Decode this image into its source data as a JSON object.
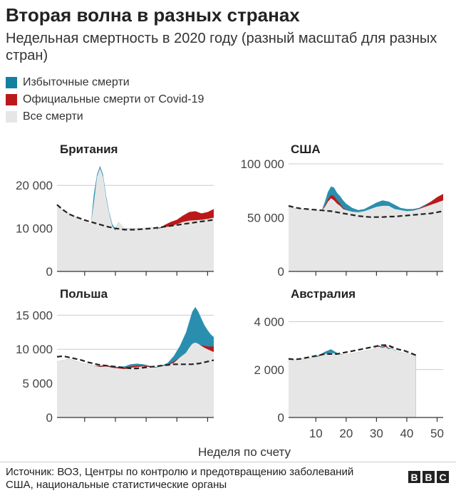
{
  "title": "Вторая волна в разных странах",
  "subtitle": "Недельная смертность в 2020 году (разный масштаб для разных стран)",
  "legend": [
    {
      "label": "Избыточные смерти",
      "color": "#1380a1"
    },
    {
      "label": "Официальные смерти от Covid-19",
      "color": "#bb1919"
    },
    {
      "label": "Все смерти",
      "color": "#e6e6e6"
    }
  ],
  "colors": {
    "excess": "#2a8fae",
    "covid": "#bb1919",
    "all": "#e6e6e6",
    "expected": "#222222",
    "grid": "#cccccc"
  },
  "xlabel": "Неделя по счету",
  "source": "Источник: ВОЗ, Центры по контролю и предотвращению заболеваний США, национальные статистические органы",
  "logo": [
    "B",
    "B",
    "C"
  ],
  "chart_data": [
    {
      "type": "area",
      "title": "Британия",
      "xlim": [
        1,
        52
      ],
      "ylim": [
        0,
        25000
      ],
      "yticks": [
        0,
        10000,
        20000
      ],
      "ytick_labels": [
        "0",
        "10 000",
        "20 000"
      ],
      "xticks": [
        10,
        20,
        30,
        40,
        50
      ],
      "xtick_labels": [],
      "x": [
        1,
        3,
        5,
        7,
        9,
        11,
        12,
        13,
        14,
        15,
        16,
        17,
        18,
        19,
        20,
        21,
        22,
        23,
        24,
        26,
        28,
        30,
        32,
        33,
        34,
        35,
        36,
        38,
        40,
        42,
        44,
        46,
        48,
        50,
        52
      ],
      "all": [
        15000,
        14200,
        13500,
        12700,
        12100,
        11200,
        11000,
        16000,
        22000,
        24000,
        22000,
        17000,
        13500,
        10500,
        9500,
        11500,
        10800,
        10000,
        9800,
        9700,
        10000,
        10200,
        10300,
        9500,
        10000,
        10100,
        10300,
        10500,
        11000,
        11500,
        11800,
        11900,
        12000,
        12200,
        12500
      ],
      "excess": [
        15000,
        14200,
        13500,
        12700,
        12100,
        11200,
        11000,
        18000,
        22500,
        24500,
        22500,
        17500,
        13800,
        11000,
        9800,
        11500,
        10800,
        10000,
        9800,
        9700,
        10000,
        10200,
        10300,
        9500,
        10200,
        10300,
        10600,
        11000,
        11500,
        12200,
        12800,
        13000,
        13200,
        13500,
        13800
      ],
      "covid": [
        15000,
        14200,
        13500,
        12700,
        12100,
        11200,
        11000,
        15000,
        19000,
        21000,
        18000,
        14000,
        12500,
        10000,
        9300,
        11300,
        10600,
        9800,
        9600,
        9500,
        9800,
        10000,
        10100,
        9300,
        10000,
        10300,
        10800,
        11500,
        12000,
        13000,
        13800,
        14000,
        13500,
        13800,
        14500
      ],
      "expected": [
        15500,
        14300,
        13300,
        12700,
        12200,
        11700,
        11500,
        11300,
        11100,
        10900,
        10700,
        10500,
        10300,
        10200,
        10000,
        9900,
        9800,
        9700,
        9700,
        9700,
        9800,
        9900,
        10000,
        10100,
        10200,
        10300,
        10400,
        10600,
        10800,
        11000,
        11200,
        11400,
        11600,
        11800,
        12000
      ]
    },
    {
      "type": "area",
      "title": "США",
      "xlim": [
        1,
        52
      ],
      "ylim": [
        0,
        100000
      ],
      "yticks": [
        0,
        50000,
        100000
      ],
      "ytick_labels": [
        "0",
        "50 000",
        "100 000"
      ],
      "xticks": [
        10,
        20,
        30,
        40,
        50
      ],
      "xtick_labels": [],
      "x": [
        1,
        3,
        5,
        7,
        9,
        11,
        12,
        13,
        14,
        15,
        16,
        17,
        18,
        19,
        20,
        22,
        24,
        26,
        28,
        30,
        32,
        34,
        36,
        38,
        40,
        42,
        44,
        46,
        48,
        50,
        52
      ],
      "all": [
        60000,
        58500,
        58000,
        57500,
        57000,
        56500,
        57000,
        60000,
        65000,
        68000,
        66000,
        63000,
        61000,
        58000,
        57000,
        55500,
        55000,
        56000,
        58000,
        60000,
        61000,
        61000,
        58000,
        57000,
        56000,
        56500,
        58000,
        60000,
        62000,
        64000,
        66000
      ],
      "excess": [
        60000,
        58500,
        58000,
        57500,
        57000,
        56500,
        57000,
        65000,
        74000,
        79000,
        78000,
        73000,
        70000,
        66000,
        63000,
        59000,
        57000,
        58000,
        61000,
        64000,
        66000,
        65000,
        62000,
        59000,
        58000,
        58000,
        59000,
        62000,
        65000,
        69000,
        72000
      ],
      "covid": [
        60000,
        58500,
        58000,
        57500,
        57000,
        56500,
        57000,
        61000,
        67000,
        71000,
        70000,
        66000,
        63000,
        59000,
        57500,
        55000,
        54000,
        55000,
        57000,
        59000,
        60000,
        60000,
        57500,
        56000,
        56000,
        56500,
        58500,
        61000,
        65000,
        69000,
        72000
      ],
      "expected": [
        61000,
        59500,
        58500,
        58000,
        57500,
        57000,
        56800,
        56500,
        56200,
        56000,
        55500,
        55000,
        54500,
        54000,
        53500,
        52500,
        51500,
        51000,
        50500,
        50500,
        50500,
        51000,
        51000,
        51500,
        52000,
        52500,
        53000,
        53500,
        54000,
        55000,
        56000
      ]
    },
    {
      "type": "area",
      "title": "Польша",
      "xlim": [
        1,
        52
      ],
      "ylim": [
        0,
        16500
      ],
      "yticks": [
        0,
        5000,
        10000,
        15000
      ],
      "ytick_labels": [
        "0",
        "5 000",
        "10 000",
        "15 000"
      ],
      "xticks": [
        10,
        20,
        30,
        40,
        50
      ],
      "xtick_labels": [],
      "x": [
        1,
        3,
        5,
        7,
        9,
        11,
        13,
        15,
        17,
        19,
        21,
        23,
        25,
        27,
        29,
        31,
        33,
        35,
        37,
        39,
        41,
        43,
        44,
        45,
        46,
        47,
        48,
        49,
        50,
        51,
        52
      ],
      "all": [
        8200,
        8400,
        8600,
        8300,
        8000,
        7800,
        7600,
        7400,
        7500,
        7300,
        7200,
        7100,
        7300,
        7400,
        7500,
        7400,
        7300,
        7500,
        7700,
        8000,
        8800,
        9500,
        10200,
        10800,
        11000,
        10800,
        10500,
        10200,
        10000,
        9800,
        9600
      ],
      "excess": [
        8200,
        8400,
        8600,
        8300,
        8000,
        7800,
        7600,
        7600,
        7700,
        7500,
        7400,
        7500,
        7800,
        7900,
        7800,
        7600,
        7400,
        7600,
        8000,
        9000,
        10500,
        12500,
        14000,
        15500,
        16200,
        15500,
        14500,
        13500,
        12800,
        12200,
        11800
      ],
      "covid": [
        8200,
        8400,
        8600,
        8300,
        8000,
        7800,
        7600,
        7500,
        7600,
        7400,
        7300,
        7300,
        7500,
        7600,
        7600,
        7500,
        7300,
        7500,
        7800,
        8200,
        8800,
        9500,
        10000,
        10500,
        10800,
        10700,
        10600,
        10500,
        10400,
        10400,
        10400
      ],
      "expected": [
        8900,
        9000,
        8800,
        8600,
        8400,
        8100,
        7900,
        7700,
        7600,
        7500,
        7400,
        7300,
        7200,
        7200,
        7300,
        7400,
        7500,
        7600,
        7700,
        7800,
        7800,
        7800,
        7800,
        7800,
        7900,
        7900,
        8000,
        8100,
        8200,
        8300,
        8400
      ]
    },
    {
      "type": "area",
      "title": "Австралия",
      "xlim": [
        1,
        52
      ],
      "ylim": [
        0,
        4700
      ],
      "yticks": [
        0,
        2000,
        4000
      ],
      "ytick_labels": [
        "0",
        "2 000",
        "4 000"
      ],
      "xticks": [
        10,
        20,
        30,
        40,
        50
      ],
      "xtick_labels": [
        "10",
        "20",
        "30",
        "40",
        "50"
      ],
      "x": [
        1,
        3,
        5,
        7,
        9,
        11,
        13,
        15,
        17,
        19,
        21,
        23,
        25,
        27,
        29,
        30,
        31,
        32,
        33,
        34,
        35,
        36,
        37,
        39,
        41,
        43
      ],
      "all": [
        2400,
        2420,
        2450,
        2480,
        2500,
        2550,
        2650,
        2700,
        2650,
        2620,
        2650,
        2700,
        2750,
        2800,
        2850,
        2950,
        2950,
        2900,
        2950,
        2850,
        2900,
        2800,
        2750,
        2700,
        2650,
        2600
      ],
      "excess": [
        2400,
        2420,
        2450,
        2480,
        2500,
        2600,
        2750,
        2850,
        2700,
        2620,
        2650,
        2700,
        2750,
        2800,
        2850,
        2980,
        3000,
        2950,
        3050,
        2900,
        2900,
        2820,
        2750,
        2700,
        2650,
        2600
      ],
      "covid": [
        2400,
        2420,
        2450,
        2480,
        2500,
        2550,
        2650,
        2700,
        2650,
        2620,
        2650,
        2700,
        2750,
        2800,
        2850,
        2950,
        3000,
        2850,
        3050,
        2800,
        2950,
        2750,
        2750,
        2700,
        2650,
        2600
      ],
      "expected": [
        2450,
        2420,
        2450,
        2500,
        2550,
        2600,
        2650,
        2650,
        2650,
        2700,
        2750,
        2800,
        2850,
        2900,
        2950,
        2980,
        3000,
        3020,
        3020,
        3000,
        2950,
        2900,
        2850,
        2800,
        2700,
        2600
      ]
    }
  ]
}
